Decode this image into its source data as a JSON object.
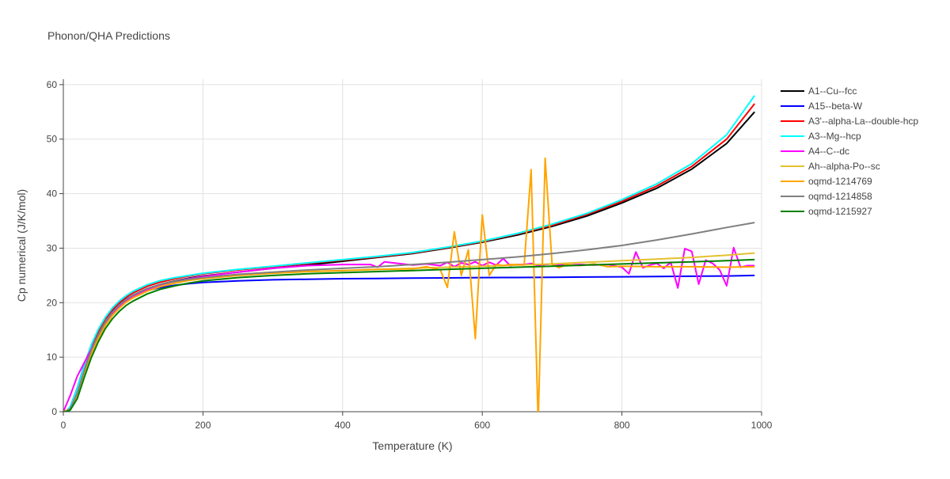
{
  "chart_data": {
    "type": "line",
    "title": "Phonon/QHA Predictions",
    "xlabel": "Temperature (K)",
    "ylabel": "Cp numerical (J/K/mol)",
    "xlim": [
      0,
      1000
    ],
    "ylim": [
      0,
      61
    ],
    "xticks": [
      0,
      200,
      400,
      600,
      800,
      1000
    ],
    "yticks": [
      0,
      10,
      20,
      30,
      40,
      50,
      60
    ],
    "grid": true,
    "legend_position": "right",
    "series": [
      {
        "name": "A1--Cu--fcc",
        "color": "#000000",
        "x": [
          0,
          5,
          10,
          20,
          30,
          40,
          50,
          60,
          70,
          80,
          90,
          100,
          120,
          140,
          160,
          180,
          200,
          250,
          300,
          350,
          400,
          450,
          500,
          550,
          600,
          650,
          700,
          750,
          800,
          850,
          900,
          950,
          990
        ],
        "y": [
          0,
          0.1,
          0.6,
          3.5,
          7.8,
          11.5,
          14.2,
          16.4,
          18.2,
          19.6,
          20.6,
          21.4,
          22.6,
          23.4,
          24.0,
          24.5,
          24.9,
          25.6,
          26.3,
          26.9,
          27.6,
          28.3,
          29.0,
          30.0,
          31.1,
          32.4,
          34.0,
          35.9,
          38.3,
          41.0,
          44.5,
          49.2,
          55.0
        ]
      },
      {
        "name": "A15--beta-W",
        "color": "#0000ff",
        "x": [
          0,
          5,
          10,
          20,
          30,
          40,
          50,
          60,
          70,
          80,
          90,
          100,
          120,
          140,
          160,
          180,
          200,
          250,
          300,
          350,
          400,
          450,
          500,
          550,
          600,
          650,
          700,
          750,
          800,
          850,
          900,
          950,
          990
        ],
        "y": [
          0,
          0.2,
          0.9,
          4.3,
          8.6,
          12.2,
          14.9,
          17.0,
          18.6,
          19.8,
          20.7,
          21.3,
          22.2,
          22.8,
          23.2,
          23.5,
          23.7,
          24.0,
          24.2,
          24.3,
          24.4,
          24.45,
          24.5,
          24.55,
          24.6,
          24.62,
          24.65,
          24.7,
          24.75,
          24.8,
          24.85,
          24.9,
          25.0
        ]
      },
      {
        "name": "A3'--alpha-La--double-hcp",
        "color": "#ff0000",
        "x": [
          0,
          5,
          10,
          20,
          30,
          40,
          50,
          60,
          70,
          80,
          90,
          100,
          120,
          140,
          160,
          180,
          200,
          250,
          300,
          350,
          400,
          450,
          500,
          550,
          600,
          650,
          700,
          750,
          800,
          850,
          900,
          950,
          990
        ],
        "y": [
          0,
          0.2,
          0.8,
          4.0,
          8.2,
          12.0,
          14.8,
          17.0,
          18.7,
          20.0,
          21.0,
          21.8,
          23.0,
          23.8,
          24.4,
          24.9,
          25.3,
          26.0,
          26.6,
          27.2,
          27.8,
          28.4,
          29.1,
          30.1,
          31.2,
          32.6,
          34.2,
          36.2,
          38.6,
          41.4,
          45.0,
          50.0,
          56.5
        ]
      },
      {
        "name": "A3--Mg--hcp",
        "color": "#00ffff",
        "x": [
          0,
          5,
          10,
          20,
          30,
          40,
          50,
          60,
          70,
          80,
          90,
          100,
          120,
          140,
          160,
          180,
          200,
          250,
          300,
          350,
          400,
          450,
          500,
          550,
          600,
          650,
          700,
          750,
          800,
          850,
          900,
          950,
          990
        ],
        "y": [
          0,
          0.2,
          0.9,
          4.2,
          8.5,
          12.3,
          15.1,
          17.3,
          19.0,
          20.3,
          21.3,
          22.1,
          23.3,
          24.1,
          24.6,
          25.0,
          25.4,
          26.1,
          26.7,
          27.3,
          27.9,
          28.5,
          29.2,
          30.2,
          31.3,
          32.7,
          34.4,
          36.4,
          38.9,
          41.8,
          45.5,
          50.8,
          58.0
        ]
      },
      {
        "name": "A4--C--dc",
        "color": "#ff00ff",
        "x": [
          0,
          10,
          20,
          30,
          40,
          50,
          60,
          70,
          80,
          90,
          100,
          120,
          140,
          160,
          180,
          200,
          250,
          300,
          350,
          400,
          440,
          450,
          460,
          500,
          520,
          540,
          550,
          560,
          570,
          580,
          590,
          600,
          610,
          620,
          630,
          640,
          650,
          660,
          670,
          680,
          690,
          700,
          720,
          740,
          760,
          780,
          800,
          810,
          820,
          830,
          840,
          850,
          860,
          870,
          880,
          890,
          900,
          910,
          920,
          930,
          940,
          950,
          960,
          970,
          980,
          990
        ],
        "y": [
          0,
          3.0,
          6.5,
          9.0,
          11.5,
          14.0,
          16.0,
          17.8,
          19.2,
          20.3,
          21.1,
          22.4,
          23.3,
          23.9,
          24.4,
          24.8,
          25.6,
          26.3,
          26.8,
          27.0,
          27.0,
          26.5,
          27.5,
          26.9,
          27.1,
          26.8,
          27.4,
          26.6,
          27.3,
          27.0,
          27.5,
          26.8,
          27.4,
          26.9,
          28.1,
          26.8,
          27.0,
          27.0,
          27.2,
          26.8,
          27.0,
          27.1,
          26.9,
          27.0,
          26.9,
          27.0,
          26.5,
          25.3,
          29.3,
          26.4,
          26.9,
          27.2,
          26.3,
          27.4,
          22.7,
          29.9,
          29.4,
          23.4,
          27.8,
          27.2,
          26.0,
          23.1,
          30.1,
          26.5,
          26.8,
          26.8
        ]
      },
      {
        "name": "Ah--alpha-Po--sc",
        "color": "#e3c12e",
        "x": [
          0,
          5,
          10,
          20,
          30,
          40,
          50,
          60,
          70,
          80,
          90,
          100,
          120,
          140,
          160,
          180,
          200,
          250,
          300,
          350,
          400,
          450,
          500,
          550,
          600,
          650,
          700,
          750,
          800,
          850,
          900,
          950,
          990
        ],
        "y": [
          0,
          0.1,
          0.5,
          3.0,
          7.0,
          10.6,
          13.4,
          15.8,
          17.6,
          19.0,
          20.1,
          20.9,
          22.1,
          23.0,
          23.6,
          24.1,
          24.4,
          25.0,
          25.4,
          25.7,
          25.9,
          26.1,
          26.3,
          26.5,
          26.7,
          26.9,
          27.1,
          27.4,
          27.7,
          28.0,
          28.3,
          28.7,
          29.1
        ]
      },
      {
        "name": "oqmd-1214769",
        "color": "#ffa500",
        "x": [
          0,
          10,
          20,
          30,
          40,
          50,
          60,
          70,
          80,
          90,
          100,
          120,
          140,
          160,
          180,
          200,
          250,
          300,
          350,
          400,
          450,
          500,
          520,
          540,
          550,
          560,
          570,
          580,
          590,
          600,
          610,
          620,
          630,
          640,
          650,
          660,
          670,
          680,
          690,
          700,
          710,
          720,
          740,
          760,
          780,
          800,
          850,
          900,
          950,
          990
        ],
        "y": [
          0,
          0.5,
          3.0,
          7.0,
          10.6,
          13.4,
          15.8,
          17.6,
          19.0,
          20.1,
          20.9,
          22.1,
          23.0,
          23.6,
          24.1,
          24.4,
          25.0,
          25.4,
          25.7,
          25.9,
          26.1,
          26.2,
          26.6,
          26.0,
          22.8,
          33.0,
          25.0,
          29.7,
          13.4,
          36.1,
          25.0,
          27.0,
          26.8,
          27.0,
          27.0,
          26.9,
          44.4,
          -2.0,
          46.5,
          27.0,
          26.4,
          27.0,
          26.8,
          27.1,
          26.6,
          26.7,
          26.6,
          26.6,
          26.5,
          26.6
        ]
      },
      {
        "name": "oqmd-1214858",
        "color": "#808080",
        "x": [
          0,
          5,
          10,
          20,
          30,
          40,
          50,
          60,
          70,
          80,
          90,
          100,
          120,
          140,
          160,
          180,
          200,
          250,
          300,
          350,
          400,
          450,
          500,
          550,
          600,
          650,
          700,
          750,
          800,
          850,
          900,
          950,
          990
        ],
        "y": [
          0,
          0.1,
          0.6,
          3.4,
          7.6,
          11.3,
          14.1,
          16.4,
          18.2,
          19.6,
          20.6,
          21.4,
          22.6,
          23.4,
          23.9,
          24.3,
          24.6,
          25.2,
          25.6,
          26.0,
          26.3,
          26.6,
          27.0,
          27.4,
          27.9,
          28.4,
          29.0,
          29.7,
          30.5,
          31.5,
          32.6,
          33.8,
          34.7
        ]
      },
      {
        "name": "oqmd-1215927",
        "color": "#008000",
        "x": [
          0,
          5,
          10,
          20,
          30,
          40,
          50,
          60,
          70,
          80,
          90,
          100,
          120,
          140,
          160,
          180,
          200,
          250,
          300,
          350,
          400,
          450,
          500,
          550,
          600,
          650,
          700,
          750,
          800,
          850,
          900,
          950,
          990
        ],
        "y": [
          0,
          0.05,
          0.3,
          2.4,
          6.3,
          9.9,
          12.8,
          15.2,
          17.0,
          18.4,
          19.5,
          20.3,
          21.6,
          22.5,
          23.1,
          23.6,
          24.0,
          24.6,
          25.0,
          25.3,
          25.5,
          25.7,
          25.9,
          26.1,
          26.3,
          26.5,
          26.7,
          26.9,
          27.1,
          27.3,
          27.5,
          27.7,
          27.9
        ]
      }
    ]
  }
}
